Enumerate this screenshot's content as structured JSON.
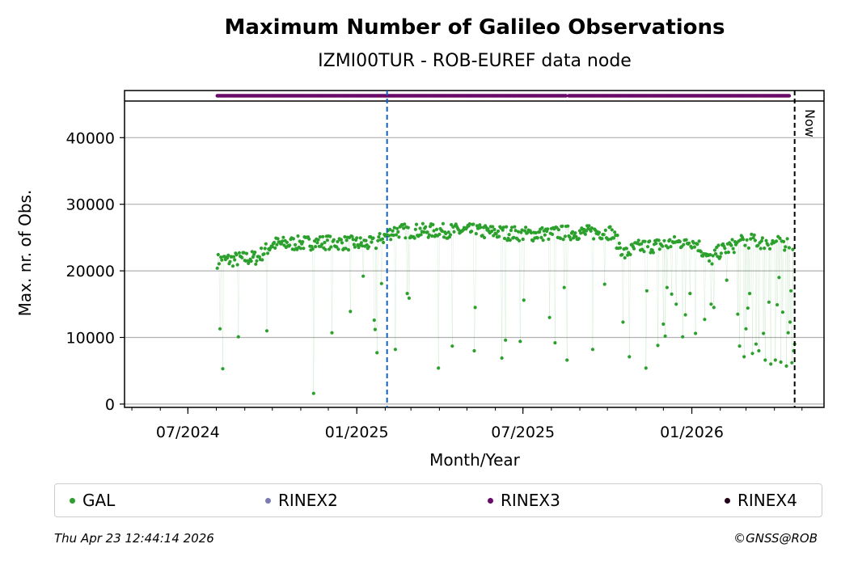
{
  "title": "Maximum Number of Galileo Observations",
  "subtitle": "IZMI00TUR - ROB-EUREF data node",
  "now_label": "Now",
  "footer": {
    "timestamp": "Thu Apr 23 12:44:14 2026",
    "copyright": "©GNSS@ROB"
  },
  "legend": [
    {
      "label": "GAL",
      "color": "#2ca02c"
    },
    {
      "label": "RINEX2",
      "color": "#7b7bb4"
    },
    {
      "label": "RINEX3",
      "color": "#6a0a6a"
    },
    {
      "label": "RINEX4",
      "color": "#22001a"
    }
  ],
  "colors": {
    "gal": "#2ca02c",
    "rinex3": "#6a0a6a",
    "marker_line": "#1560bd",
    "grid": "#b0b0b0"
  },
  "chart_data": {
    "type": "scatter",
    "xlabel": "Month/Year",
    "ylabel": "Max. nr. of Obs.",
    "x_ticks": [
      "07/2024",
      "01/2025",
      "07/2025",
      "01/2026"
    ],
    "x_tick_dates": [
      "2024-07-01",
      "2025-01-01",
      "2025-07-01",
      "2026-01-01"
    ],
    "xlim": [
      "2024-04-23",
      "2026-05-25"
    ],
    "y_ticks": [
      0,
      10000,
      20000,
      30000,
      40000
    ],
    "ylim": [
      -500,
      45500
    ],
    "grid": "horizontal",
    "now_date": "2026-04-23",
    "vline_date": "2025-02-03",
    "rinex3_bar": [
      [
        "2024-08-02",
        "2025-08-17"
      ],
      [
        "2025-08-20",
        "2026-04-17"
      ]
    ],
    "series": [
      {
        "name": "GAL",
        "baseline": [
          [
            "2024-08-02",
            21500
          ],
          [
            "2024-09-15",
            22000
          ],
          [
            "2024-10-01",
            24000
          ],
          [
            "2024-12-01",
            24300
          ],
          [
            "2025-01-20",
            24000
          ],
          [
            "2025-02-04",
            25500
          ],
          [
            "2025-02-10",
            26000
          ],
          [
            "2025-05-01",
            26000
          ],
          [
            "2025-07-10",
            25500
          ],
          [
            "2025-08-10",
            25700
          ],
          [
            "2025-10-05",
            25800
          ],
          [
            "2025-10-20",
            22500
          ],
          [
            "2025-11-01",
            23500
          ],
          [
            "2026-01-05",
            24500
          ],
          [
            "2026-01-20",
            21500
          ],
          [
            "2026-02-01",
            23000
          ],
          [
            "2026-03-01",
            24500
          ],
          [
            "2026-04-22",
            24000
          ]
        ],
        "outliers": [
          [
            "2024-08-05",
            11300
          ],
          [
            "2024-08-08",
            5300
          ],
          [
            "2024-08-25",
            10100
          ],
          [
            "2024-09-25",
            11000
          ],
          [
            "2024-11-15",
            1600
          ],
          [
            "2024-12-05",
            10700
          ],
          [
            "2024-12-25",
            13900
          ],
          [
            "2025-01-08",
            19200
          ],
          [
            "2025-01-20",
            12600
          ],
          [
            "2025-01-21",
            11200
          ],
          [
            "2025-01-23",
            7700
          ],
          [
            "2025-01-28",
            18100
          ],
          [
            "2025-02-12",
            8200
          ],
          [
            "2025-02-25",
            16600
          ],
          [
            "2025-02-27",
            15900
          ],
          [
            "2025-03-31",
            5400
          ],
          [
            "2025-04-15",
            8700
          ],
          [
            "2025-05-10",
            14500
          ],
          [
            "2025-05-09",
            8000
          ],
          [
            "2025-06-08",
            6900
          ],
          [
            "2025-06-12",
            9600
          ],
          [
            "2025-06-28",
            9400
          ],
          [
            "2025-07-02",
            15600
          ],
          [
            "2025-07-30",
            13000
          ],
          [
            "2025-08-05",
            9200
          ],
          [
            "2025-08-15",
            17500
          ],
          [
            "2025-08-18",
            6600
          ],
          [
            "2025-09-15",
            8200
          ],
          [
            "2025-09-28",
            18000
          ],
          [
            "2025-10-18",
            12300
          ],
          [
            "2025-10-25",
            7100
          ],
          [
            "2025-11-12",
            5400
          ],
          [
            "2025-11-13",
            17000
          ],
          [
            "2025-11-25",
            8800
          ],
          [
            "2025-12-01",
            12000
          ],
          [
            "2025-12-03",
            10200
          ],
          [
            "2025-12-05",
            17500
          ],
          [
            "2025-12-10",
            16500
          ],
          [
            "2025-12-15",
            15000
          ],
          [
            "2025-12-22",
            10100
          ],
          [
            "2025-12-25",
            13400
          ],
          [
            "2025-12-30",
            16600
          ],
          [
            "2026-01-05",
            10600
          ],
          [
            "2026-01-15",
            12700
          ],
          [
            "2026-01-22",
            15000
          ],
          [
            "2026-01-25",
            14500
          ],
          [
            "2026-02-08",
            18600
          ],
          [
            "2026-02-20",
            13500
          ],
          [
            "2026-02-22",
            8700
          ],
          [
            "2026-02-27",
            7100
          ],
          [
            "2026-03-01",
            11300
          ],
          [
            "2026-03-03",
            14400
          ],
          [
            "2026-03-05",
            16600
          ],
          [
            "2026-03-08",
            7600
          ],
          [
            "2026-03-12",
            9000
          ],
          [
            "2026-03-15",
            8000
          ],
          [
            "2026-03-20",
            10600
          ],
          [
            "2026-03-22",
            6600
          ],
          [
            "2026-03-26",
            15300
          ],
          [
            "2026-03-28",
            6000
          ],
          [
            "2026-04-02",
            6600
          ],
          [
            "2026-04-04",
            14900
          ],
          [
            "2026-04-06",
            19000
          ],
          [
            "2026-04-08",
            6300
          ],
          [
            "2026-04-10",
            13800
          ],
          [
            "2026-04-14",
            5700
          ],
          [
            "2026-04-16",
            10700
          ],
          [
            "2026-04-18",
            12300
          ],
          [
            "2026-04-19",
            17000
          ],
          [
            "2026-04-20",
            6200
          ],
          [
            "2026-04-22",
            8000
          ],
          [
            "2026-04-23",
            9000
          ]
        ]
      }
    ]
  }
}
